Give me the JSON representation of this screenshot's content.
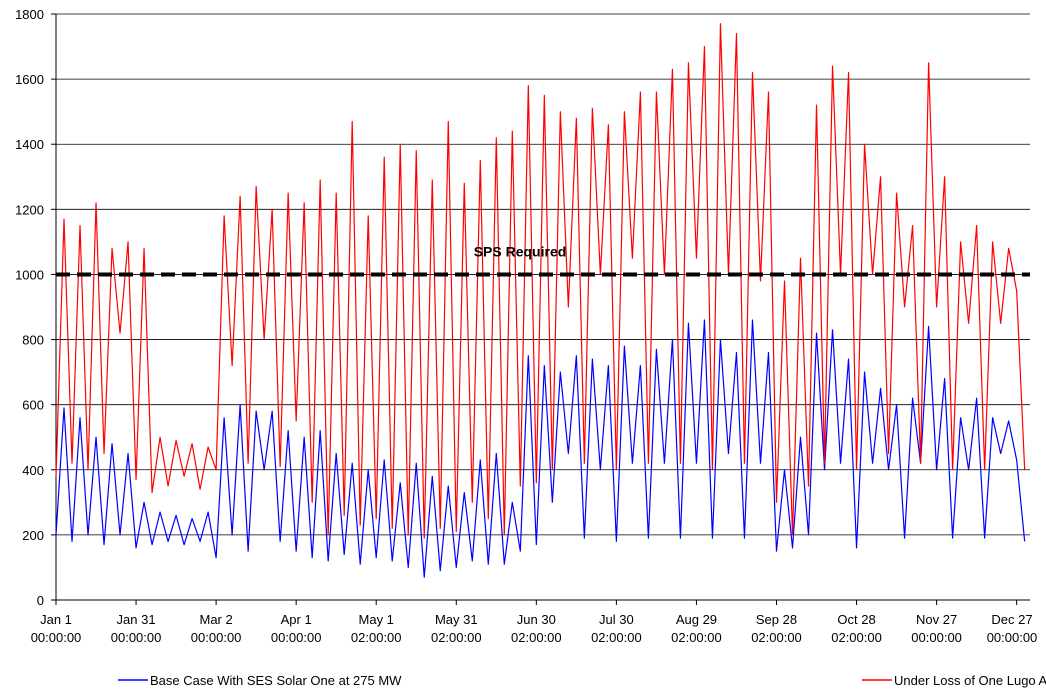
{
  "chart_data": {
    "type": "line",
    "x": [
      0,
      3,
      6,
      9,
      12,
      15,
      18,
      21,
      24,
      27,
      30,
      33,
      36,
      39,
      42,
      45,
      48,
      51,
      54,
      57,
      60,
      63,
      66,
      69,
      72,
      75,
      78,
      81,
      84,
      87,
      90,
      93,
      96,
      99,
      102,
      105,
      108,
      111,
      114,
      117,
      120,
      123,
      126,
      129,
      132,
      135,
      138,
      141,
      144,
      147,
      150,
      153,
      156,
      159,
      162,
      165,
      168,
      171,
      174,
      177,
      180,
      183,
      186,
      189,
      192,
      195,
      198,
      201,
      204,
      207,
      210,
      213,
      216,
      219,
      222,
      225,
      228,
      231,
      234,
      237,
      240,
      243,
      246,
      249,
      252,
      255,
      258,
      261,
      264,
      267,
      270,
      273,
      276,
      279,
      282,
      285,
      288,
      291,
      294,
      297,
      300,
      303,
      306,
      309,
      312,
      315,
      318,
      321,
      324,
      327,
      330,
      333,
      336,
      339,
      342,
      345,
      348,
      351,
      354,
      357,
      360,
      363
    ],
    "series": [
      {
        "name": "Base Case With SES Solar One at 275 MW",
        "color": "#0000ff",
        "values": [
          200,
          590,
          180,
          560,
          200,
          500,
          170,
          480,
          200,
          450,
          160,
          300,
          170,
          270,
          180,
          260,
          170,
          250,
          180,
          270,
          130,
          560,
          200,
          600,
          150,
          580,
          400,
          580,
          180,
          520,
          150,
          500,
          130,
          520,
          120,
          450,
          140,
          420,
          110,
          400,
          130,
          430,
          120,
          360,
          100,
          420,
          70,
          380,
          90,
          350,
          100,
          330,
          120,
          430,
          110,
          450,
          110,
          300,
          150,
          750,
          170,
          720,
          300,
          700,
          450,
          750,
          190,
          740,
          400,
          720,
          180,
          780,
          420,
          720,
          190,
          770,
          420,
          800,
          190,
          850,
          420,
          860,
          190,
          800,
          450,
          760,
          190,
          860,
          420,
          760,
          150,
          400,
          160,
          500,
          200,
          820,
          400,
          830,
          420,
          740,
          160,
          700,
          420,
          650,
          400,
          600,
          190,
          620,
          420,
          840,
          400,
          680,
          190,
          560,
          400,
          620,
          190,
          560,
          450,
          550,
          430,
          180
        ]
      },
      {
        "name": "Under Loss of One Lugo AA-Bank",
        "color": "#ff0000",
        "values": [
          380,
          1170,
          420,
          1150,
          400,
          1220,
          450,
          1080,
          820,
          1100,
          370,
          1080,
          330,
          500,
          350,
          490,
          380,
          480,
          340,
          470,
          400,
          1180,
          720,
          1240,
          420,
          1270,
          800,
          1200,
          410,
          1250,
          550,
          1220,
          300,
          1290,
          200,
          1250,
          260,
          1470,
          230,
          1180,
          250,
          1360,
          220,
          1400,
          200,
          1380,
          190,
          1290,
          220,
          1470,
          210,
          1280,
          300,
          1350,
          250,
          1420,
          200,
          1440,
          350,
          1580,
          360,
          1550,
          400,
          1500,
          900,
          1480,
          420,
          1510,
          1000,
          1460,
          400,
          1500,
          1050,
          1560,
          420,
          1560,
          1000,
          1630,
          420,
          1650,
          1050,
          1700,
          400,
          1770,
          1000,
          1740,
          420,
          1620,
          980,
          1560,
          300,
          980,
          200,
          1050,
          350,
          1520,
          420,
          1640,
          1000,
          1620,
          400,
          1400,
          1000,
          1300,
          450,
          1250,
          900,
          1150,
          420,
          1650,
          900,
          1300,
          400,
          1100,
          850,
          1150,
          400,
          1100,
          850,
          1080,
          950,
          400
        ]
      }
    ],
    "threshold": 1000,
    "annotation": "SPS Required",
    "xlim": [
      0,
      365
    ],
    "xticks": [
      {
        "value": 0,
        "label": "Jan 1 00:00:00"
      },
      {
        "value": 30,
        "label": "Jan 31 00:00:00"
      },
      {
        "value": 60,
        "label": "Mar 2 00:00:00"
      },
      {
        "value": 90,
        "label": "Apr 1 00:00:00"
      },
      {
        "value": 120,
        "label": "May 1 02:00:00"
      },
      {
        "value": 150,
        "label": "May 31 02:00:00"
      },
      {
        "value": 180,
        "label": "Jun 30 02:00:00"
      },
      {
        "value": 210,
        "label": "Jul 30 02:00:00"
      },
      {
        "value": 240,
        "label": "Aug 29 02:00:00"
      },
      {
        "value": 270,
        "label": "Sep 28 02:00:00"
      },
      {
        "value": 300,
        "label": "Oct 28 02:00:00"
      },
      {
        "value": 330,
        "label": "Nov 27 00:00:00"
      },
      {
        "value": 360,
        "label": "Dec 27 00:00:00"
      }
    ],
    "ylim": [
      0,
      1800
    ],
    "yticks": [
      0,
      200,
      400,
      600,
      800,
      1000,
      1200,
      1400,
      1600,
      1800
    ],
    "grid": true,
    "legend": "bottom"
  }
}
